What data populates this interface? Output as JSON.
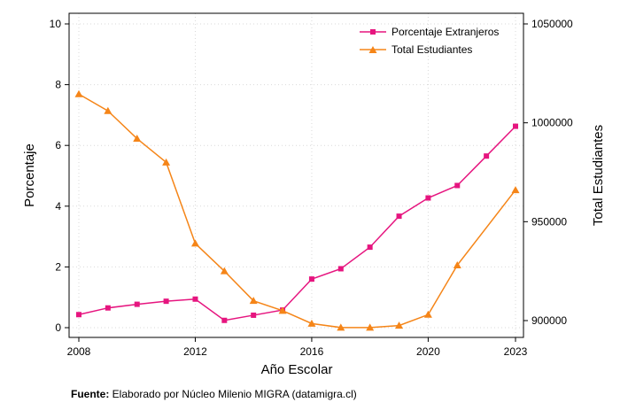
{
  "chart_data": {
    "type": "line",
    "xlabel": "Año Escolar",
    "ylabel_left": "Porcentaje",
    "ylabel_right": "Total Estudiantes",
    "x_ticks": [
      "2008",
      "2012",
      "2016",
      "2020",
      "2023"
    ],
    "y_left_ticks": [
      "0",
      "2",
      "4",
      "6",
      "8",
      "10"
    ],
    "y_right_ticks": [
      "900000",
      "950000",
      "1000000",
      "1050000"
    ],
    "ylim_left": [
      0,
      10
    ],
    "ylim_right": [
      896000,
      1050000
    ],
    "xlim": [
      2008,
      2023
    ],
    "grid": true,
    "legend_position": "top-right",
    "x": [
      2008,
      2009,
      2010,
      2011,
      2012,
      2013,
      2014,
      2015,
      2016,
      2017,
      2018,
      2019,
      2020,
      2021,
      2022,
      2023
    ],
    "series": [
      {
        "name": "Porcentaje Extranjeros",
        "axis": "left",
        "color": "#e6157f",
        "marker": "square",
        "values": [
          0.43,
          0.65,
          0.77,
          0.87,
          0.94,
          0.24,
          0.41,
          0.58,
          1.6,
          1.94,
          2.65,
          3.67,
          4.27,
          4.68,
          5.65,
          6.63
        ]
      },
      {
        "name": "Total Estudiantes",
        "axis": "right",
        "color": "#f58518",
        "marker": "triangle",
        "values": [
          1014500,
          1006000,
          992000,
          980000,
          939000,
          925000,
          910000,
          905000,
          898500,
          896500,
          896500,
          897500,
          903000,
          928000,
          null,
          966000
        ]
      }
    ]
  },
  "footer": {
    "label": "Fuente:",
    "text": " Elaborado por Núcleo Milenio MIGRA (datamigra.cl)"
  }
}
